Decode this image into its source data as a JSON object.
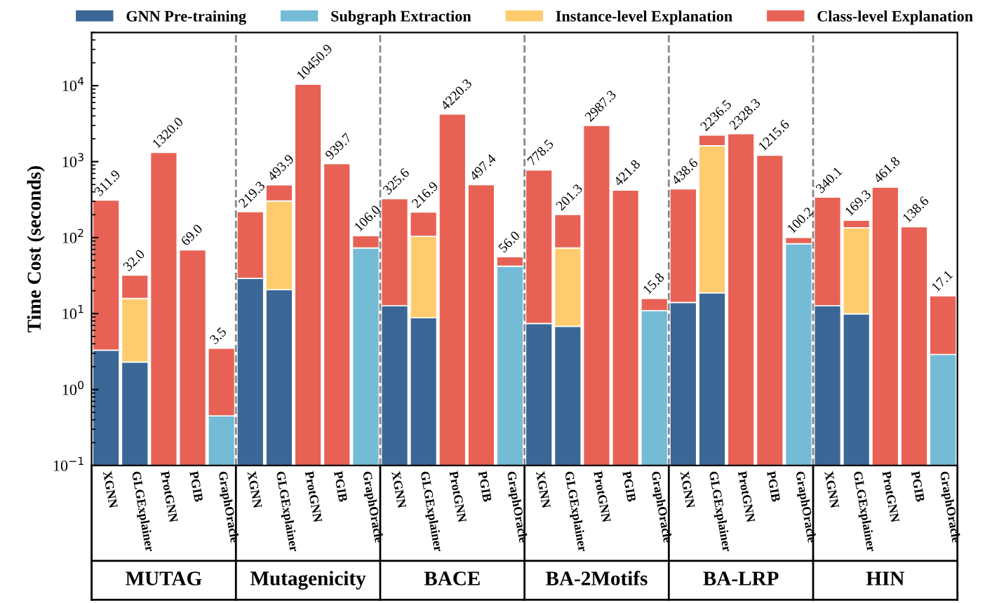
{
  "chart_data": {
    "type": "bar",
    "stacked": true,
    "log": "y",
    "ylabel": "Time Cost (seconds)",
    "categories": [
      "XGNN",
      "GLGExplainer",
      "ProtGNN",
      "PGIB",
      "GraphOracle",
      "XGNN",
      "GLGExplainer",
      "ProtGNN",
      "PGIB",
      "GraphOracle",
      "XGNN",
      "GLGExplainer",
      "ProtGNN",
      "PGIB",
      "GraphOracle",
      "XGNN",
      "GLGExplainer",
      "ProtGNN",
      "PGIB",
      "GraphOracle",
      "XGNN",
      "GLGExplainer",
      "ProtGNN",
      "PGIB",
      "GraphOracle",
      "XGNN",
      "GLGExplainer",
      "ProtGNN",
      "PGIB",
      "GraphOracle"
    ],
    "annotations": [
      "MUTAG",
      "Mutagenicity",
      "BACE",
      "BA-2Motifs",
      "BA-LRP",
      "HIN"
    ],
    "series": [
      {
        "name": "GNN Pre-training",
        "color": "#3a6795",
        "values": [
          3.3,
          2.3,
          null,
          null,
          null,
          29,
          20.6,
          null,
          null,
          null,
          12.7,
          8.8,
          null,
          null,
          null,
          7.4,
          6.8,
          null,
          null,
          null,
          14,
          18.7,
          null,
          null,
          null,
          12.7,
          9.9,
          null,
          null,
          null
        ]
      },
      {
        "name": "Subgraph Extraction",
        "color": "#74bbd6",
        "values": [
          null,
          null,
          null,
          null,
          0.45,
          null,
          null,
          null,
          null,
          73,
          null,
          null,
          null,
          null,
          42,
          null,
          null,
          null,
          null,
          10.9,
          null,
          null,
          null,
          null,
          83,
          null,
          null,
          null,
          null,
          2.9
        ]
      },
      {
        "name": "Instance-level Explanation",
        "color": "#fecc6f",
        "values": [
          null,
          13.5,
          null,
          null,
          null,
          null,
          282.4,
          null,
          null,
          null,
          null,
          95.2,
          null,
          null,
          null,
          null,
          66.2,
          null,
          null,
          null,
          null,
          1601.3,
          null,
          null,
          null,
          null,
          125.1,
          null,
          null,
          null
        ]
      },
      {
        "name": "Class-level Explanation",
        "color": "#e76254",
        "values": [
          308.6,
          16.2,
          1320.0,
          69.0,
          3.05,
          190.3,
          190.9,
          10450.9,
          939.7,
          33.0,
          312.9,
          112.9,
          4220.3,
          497.4,
          14.0,
          771.1,
          128.3,
          2987.3,
          421.8,
          4.9,
          424.6,
          616.5,
          2328.3,
          1215.6,
          17.2,
          327.4,
          34.3,
          461.8,
          138.6,
          14.2
        ]
      }
    ],
    "totals": [
      "311.9",
      "32.0",
      "1320.0",
      "69.0",
      "3.5",
      "219.3",
      "493.9",
      "10450.9",
      "939.7",
      "106.0",
      "325.6",
      "216.9",
      "4220.3",
      "497.4",
      "56.0",
      "778.5",
      "201.3",
      "2987.3",
      "421.8",
      "15.8",
      "438.6",
      "2236.5",
      "2328.3",
      "1215.6",
      "100.2",
      "340.1",
      "169.3",
      "461.8",
      "138.6",
      "17.1"
    ],
    "ylim": [
      0.1,
      50000
    ],
    "yticks": [
      {
        "value": 0.1,
        "label": "10$^{−1}$"
      },
      {
        "value": 1,
        "label": "10$^{0}$"
      },
      {
        "value": 10,
        "label": "10$^{1}$"
      },
      {
        "value": 100,
        "label": "10$^{2}$"
      },
      {
        "value": 1000,
        "label": "10$^{3}$"
      },
      {
        "value": 10000,
        "label": "10$^{4}$"
      }
    ],
    "legend": "top",
    "grid": false
  }
}
